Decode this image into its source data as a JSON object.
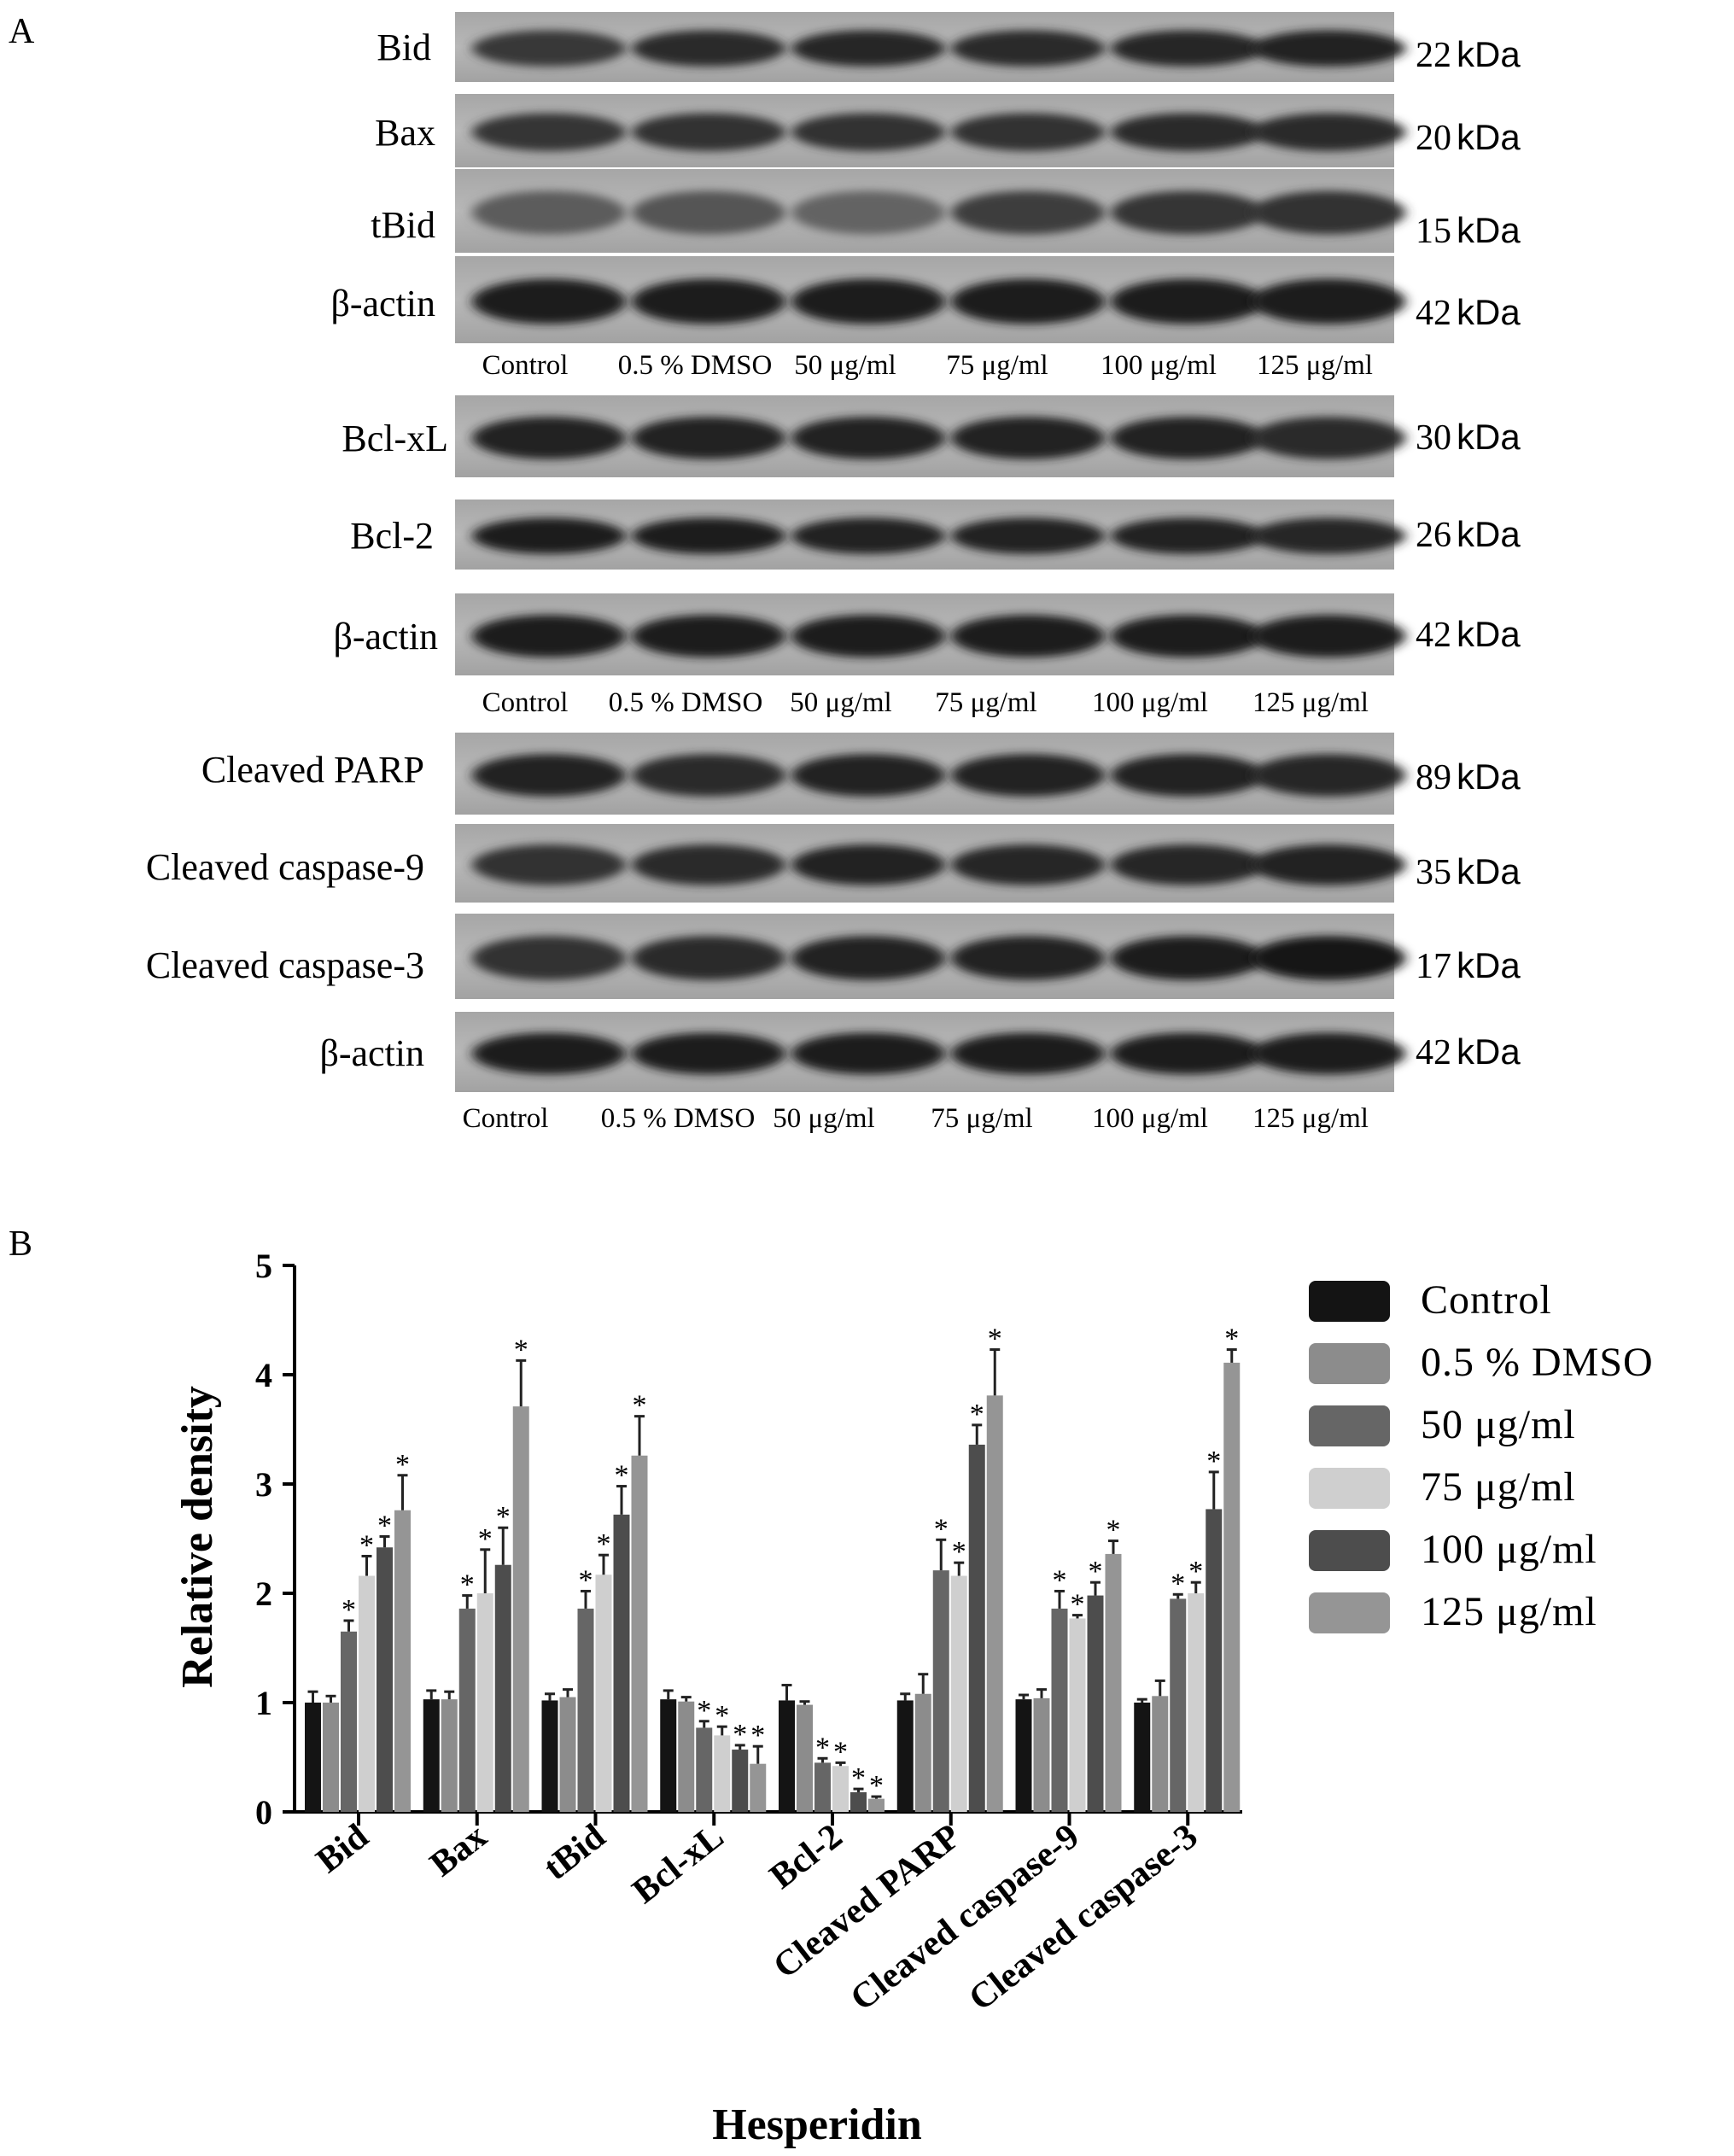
{
  "panels": {
    "a": "A",
    "b": "B"
  },
  "kda_unit": "kDa",
  "lanes": {
    "set1": [
      "Control",
      "0.5 % DMSO",
      "50 μg/ml",
      "75 μg/ml",
      "100 μg/ml",
      "125 μg/ml"
    ],
    "set2": [
      "Control",
      "0.5 % DMSO",
      "50 μg/ml",
      "75 μg/ml",
      "100 μg/ml",
      "125 μg/ml"
    ],
    "set3": [
      "Control",
      "0.5 % DMSO",
      "50 μg/ml",
      "75 μg/ml",
      "100 μg/ml",
      "125 μg/ml"
    ]
  },
  "blots": [
    {
      "protein": "Bid",
      "kda": "22"
    },
    {
      "protein": "Bax",
      "kda": "20"
    },
    {
      "protein": "tBid",
      "kda": "15"
    },
    {
      "protein": "β-actin",
      "kda": "42"
    },
    {
      "protein": "Bcl-xL",
      "kda": "30"
    },
    {
      "protein": "Bcl-2",
      "kda": "26"
    },
    {
      "protein": "β-actin",
      "kda": "42"
    },
    {
      "protein": "Cleaved PARP",
      "kda": "89"
    },
    {
      "protein": "Cleaved caspase-9",
      "kda": "35"
    },
    {
      "protein": "Cleaved caspase-3",
      "kda": "17"
    },
    {
      "protein": "β-actin",
      "kda": "42"
    }
  ],
  "chart_data": {
    "type": "bar",
    "ylabel": "Relative density",
    "xlabel": "Hesperidin",
    "ylim": [
      0,
      5
    ],
    "yticks": [
      "0",
      "1",
      "2",
      "3",
      "4",
      "5"
    ],
    "categories": [
      "Bid",
      "Bax",
      "tBid",
      "Bcl-xL",
      "Bcl-2",
      "Cleaved PARP",
      "Cleaved caspase-9",
      "Cleaved caspase-3"
    ],
    "legend_position": "right",
    "significance_mark": "*",
    "series": [
      {
        "name": "Control",
        "color": "#141414",
        "values": [
          1.0,
          1.03,
          1.02,
          1.03,
          1.02,
          1.02,
          1.03,
          1.0
        ],
        "errors": [
          0.1,
          0.08,
          0.06,
          0.08,
          0.14,
          0.06,
          0.04,
          0.03
        ],
        "sig": [
          false,
          false,
          false,
          false,
          false,
          false,
          false,
          false
        ]
      },
      {
        "name": "0.5 % DMSO",
        "color": "#8c8c8c",
        "values": [
          1.0,
          1.03,
          1.05,
          1.01,
          0.98,
          1.08,
          1.04,
          1.06
        ],
        "errors": [
          0.06,
          0.07,
          0.07,
          0.04,
          0.03,
          0.18,
          0.08,
          0.14
        ],
        "sig": [
          false,
          false,
          false,
          false,
          false,
          false,
          false,
          false
        ]
      },
      {
        "name": "50 μg/ml",
        "color": "#666666",
        "values": [
          1.65,
          1.86,
          1.86,
          0.77,
          0.45,
          2.21,
          1.86,
          1.95
        ],
        "errors": [
          0.1,
          0.12,
          0.16,
          0.06,
          0.04,
          0.28,
          0.16,
          0.04
        ],
        "sig": [
          true,
          true,
          true,
          true,
          true,
          true,
          true,
          true
        ]
      },
      {
        "name": "75 μg/ml",
        "color": "#cfcfcf",
        "values": [
          2.16,
          2.0,
          2.17,
          0.7,
          0.42,
          2.16,
          1.77,
          2.0
        ],
        "errors": [
          0.18,
          0.4,
          0.18,
          0.08,
          0.03,
          0.12,
          0.03,
          0.1
        ],
        "sig": [
          true,
          true,
          true,
          true,
          true,
          true,
          true,
          true
        ]
      },
      {
        "name": "100 μg/ml",
        "color": "#4d4d4d",
        "values": [
          2.42,
          2.26,
          2.72,
          0.57,
          0.18,
          3.36,
          1.98,
          2.77
        ],
        "errors": [
          0.1,
          0.34,
          0.26,
          0.04,
          0.03,
          0.18,
          0.12,
          0.34
        ],
        "sig": [
          true,
          true,
          true,
          true,
          true,
          true,
          true,
          true
        ]
      },
      {
        "name": "125 μg/ml",
        "color": "#959595",
        "values": [
          2.76,
          3.71,
          3.26,
          0.44,
          0.12,
          3.81,
          2.36,
          4.11
        ],
        "errors": [
          0.32,
          0.42,
          0.36,
          0.16,
          0.02,
          0.42,
          0.12,
          0.12
        ],
        "sig": [
          true,
          true,
          true,
          true,
          true,
          true,
          true,
          true
        ]
      }
    ]
  }
}
